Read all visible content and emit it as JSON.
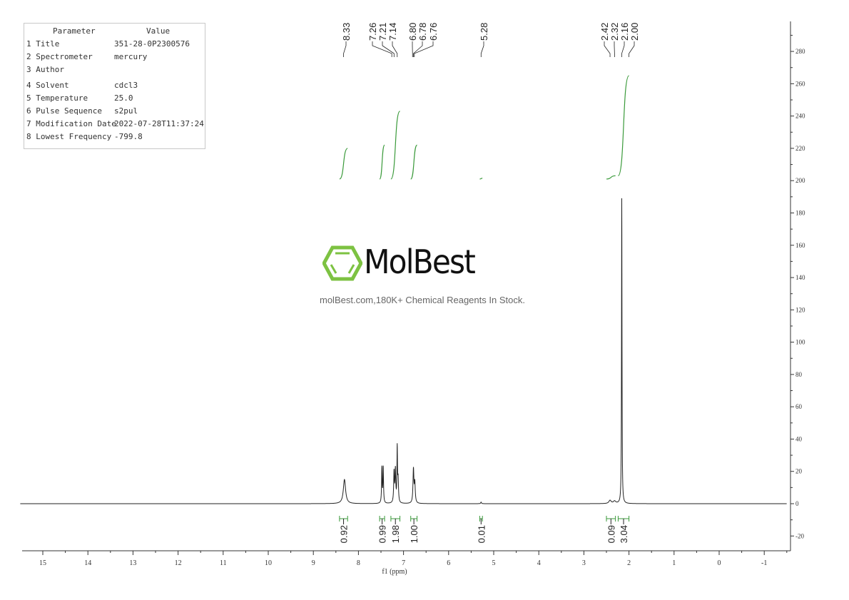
{
  "parameters": {
    "header": [
      "Parameter",
      "Value"
    ],
    "rows": [
      {
        "label": "1 Title",
        "value": "351-28-0P2300576"
      },
      {
        "label": "2 Spectrometer",
        "value": "mercury"
      },
      {
        "label": "3 Author",
        "value": ""
      },
      {
        "label": "4 Solvent",
        "value": "cdcl3"
      },
      {
        "label": "5 Temperature",
        "value": "25.0"
      },
      {
        "label": "6 Pulse Sequence",
        "value": "s2pul"
      },
      {
        "label": "7 Modification Date",
        "value": "2022-07-28T11:37:24"
      },
      {
        "label": "8 Lowest Frequency",
        "value": "-799.8"
      }
    ]
  },
  "watermark": {
    "brand": "MolBest",
    "tagline": "molBest.com,180K+ Chemical Reagents In Stock.",
    "color": "#7dc242"
  },
  "chart_data": {
    "type": "line",
    "xlabel": "f1 (ppm)",
    "xlim": [
      15.5,
      -1.5
    ],
    "x_reversed": true,
    "x_ticks": [
      15,
      14,
      13,
      12,
      11,
      10,
      9,
      8,
      7,
      6,
      5,
      4,
      3,
      2,
      1,
      0,
      -1
    ],
    "ylim": [
      -30,
      295
    ],
    "y_ticks": [
      -20,
      0,
      20,
      40,
      60,
      80,
      100,
      120,
      140,
      160,
      180,
      200,
      220,
      240,
      260,
      280
    ],
    "y_axis_side": "right",
    "grid": false,
    "spectrum_color": "#222222",
    "integral_color": "#3a9a3a",
    "peaks": [
      {
        "ppm": 8.31,
        "height": 15,
        "width": 0.03
      },
      {
        "ppm": 7.48,
        "height": 22,
        "width": 0.008
      },
      {
        "ppm": 7.45,
        "height": 22,
        "width": 0.008
      },
      {
        "ppm": 7.21,
        "height": 19,
        "width": 0.01
      },
      {
        "ppm": 7.18,
        "height": 20,
        "width": 0.01
      },
      {
        "ppm": 7.14,
        "height": 33,
        "width": 0.007
      },
      {
        "ppm": 7.12,
        "height": 14,
        "width": 0.01
      },
      {
        "ppm": 6.78,
        "height": 21,
        "width": 0.012
      },
      {
        "ppm": 6.75,
        "height": 12,
        "width": 0.012
      },
      {
        "ppm": 5.28,
        "height": 1,
        "width": 0.01
      },
      {
        "ppm": 2.42,
        "height": 2,
        "width": 0.03
      },
      {
        "ppm": 2.32,
        "height": 1.5,
        "width": 0.03
      },
      {
        "ppm": 2.16,
        "height": 189,
        "width": 0.006
      }
    ],
    "peak_labels": [
      "8.33",
      "7.26",
      "7.21",
      "7.14",
      "6.80",
      "6.78",
      "6.76",
      "5.28",
      "2.42",
      "2.32",
      "2.16",
      "2.00"
    ],
    "peak_label_ppm": [
      8.33,
      7.26,
      7.21,
      7.14,
      6.8,
      6.78,
      6.76,
      5.28,
      2.42,
      2.32,
      2.16,
      2.0
    ],
    "integrals": [
      {
        "from": 8.42,
        "to": 8.24,
        "value": "0.92",
        "y_start": 201,
        "y_end": 220
      },
      {
        "from": 7.53,
        "to": 7.42,
        "value": "0.99",
        "y_start": 201,
        "y_end": 222
      },
      {
        "from": 7.28,
        "to": 7.08,
        "value": "1.98",
        "y_start": 201,
        "y_end": 243
      },
      {
        "from": 6.84,
        "to": 6.7,
        "value": "1.00",
        "y_start": 201,
        "y_end": 222
      },
      {
        "from": 5.31,
        "to": 5.25,
        "value": "0.01",
        "y_start": 201,
        "y_end": 201.5
      },
      {
        "from": 2.5,
        "to": 2.3,
        "value": "0.09",
        "y_start": 201,
        "y_end": 203
      },
      {
        "from": 2.24,
        "to": 2.0,
        "value": "3.04",
        "y_start": 203,
        "y_end": 265
      }
    ]
  }
}
